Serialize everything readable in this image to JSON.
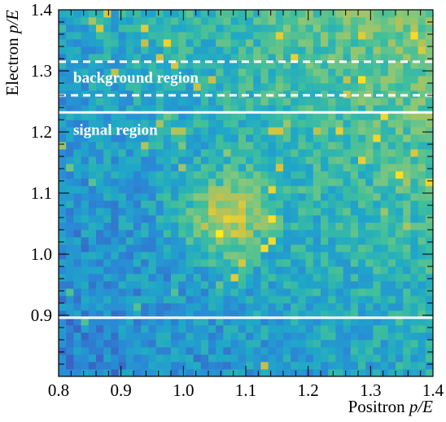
{
  "chart_data": {
    "type": "heatmap",
    "xlabel": {
      "prefix": "Positron ",
      "var": "p/E"
    },
    "ylabel": {
      "prefix": "Electron ",
      "var": "p/E"
    },
    "xlim": [
      0.8,
      1.4
    ],
    "ylim": [
      0.8,
      1.4
    ],
    "x_ticks": [
      "0.8",
      "0.9",
      "1.0",
      "1.1",
      "1.2",
      "1.3",
      "1.4"
    ],
    "y_ticks": [
      "0.9",
      "1.0",
      "1.1",
      "1.2",
      "1.3",
      "1.4"
    ],
    "bins": {
      "nx": 50,
      "ny": 50
    },
    "density": {
      "peak_center": [
        1.07,
        1.06
      ],
      "peak_sigma": [
        0.045,
        0.045
      ],
      "background_gradient": "increasing toward high Positron p/E and high Electron p/E (upper right)"
    },
    "colormap": [
      "#3b5fc2",
      "#2a8ad6",
      "#1fa8c8",
      "#3fbf9c",
      "#86c77a",
      "#c7c04a",
      "#f6d92a",
      "#ffee16"
    ],
    "horizontal_lines": [
      {
        "y": 1.315,
        "style": "dashed"
      },
      {
        "y": 1.26,
        "style": "dashed"
      },
      {
        "y": 1.232,
        "style": "solid"
      },
      {
        "y": 0.896,
        "style": "solid"
      }
    ],
    "annotations": [
      {
        "text": "background region",
        "y": 1.29
      },
      {
        "text": "signal region",
        "y": 1.205
      }
    ],
    "line_color": "#ffffff"
  }
}
